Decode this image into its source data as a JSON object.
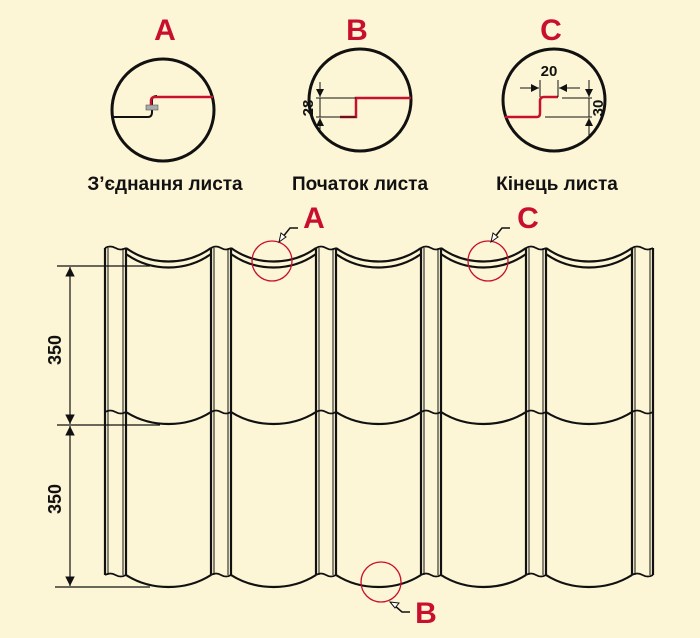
{
  "colors": {
    "background": "#fdf6d6",
    "accent": "#c8102e",
    "line": "#111111"
  },
  "details": [
    {
      "letter": "A",
      "caption": "З’єднання листа"
    },
    {
      "letter": "B",
      "caption": "Початок листа",
      "dimension": "28"
    },
    {
      "letter": "C",
      "caption": "Кінець листа",
      "dimension_width": "20",
      "dimension_height": "30"
    }
  ],
  "drawing": {
    "module_dimensions": [
      "350",
      "350"
    ],
    "callouts": [
      "A",
      "C",
      "B"
    ]
  }
}
